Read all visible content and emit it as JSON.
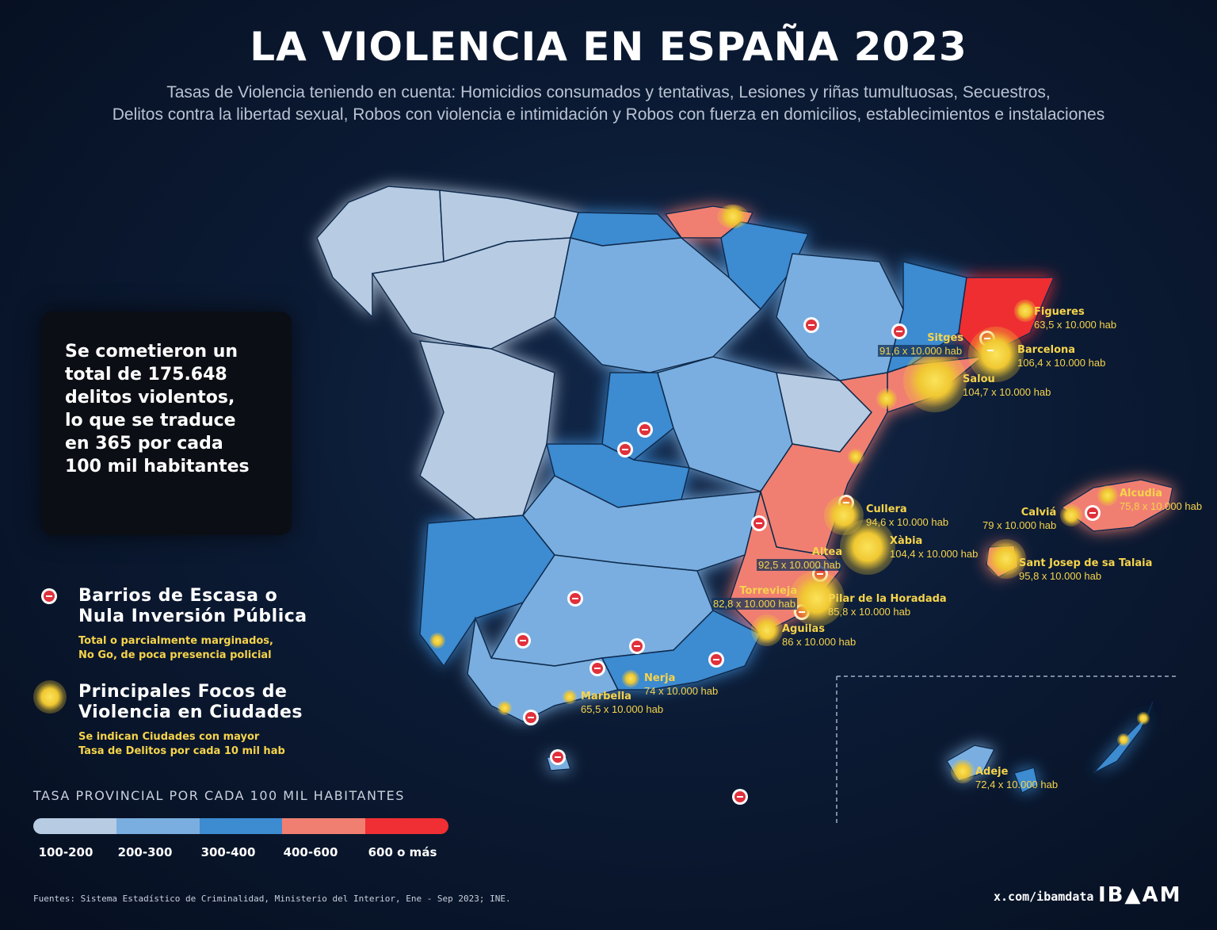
{
  "header": {
    "title": "LA VIOLENCIA EN ESPAÑA 2023",
    "subtitle_line1": "Tasas de Violencia teniendo en cuenta: Homicidios consumados y tentativas, Lesiones y riñas tumultuosas, Secuestros,",
    "subtitle_line2": "Delitos contra la libertad sexual, Robos con violencia e intimidación y Robos con fuerza en domicilios, establecimientos e instalaciones"
  },
  "callout": {
    "lines": [
      "Se cometieron un",
      "total de 175.648",
      "delitos violentos,",
      "lo que se traduce",
      "en 365 por cada",
      "100 mil habitantes"
    ]
  },
  "legend": {
    "neighborhoods_title_1": "Barrios de Escasa o",
    "neighborhoods_title_2": "Nula Inversión Pública",
    "neighborhoods_desc_1": "Total o parcialmente marginados,",
    "neighborhoods_desc_2": "No Go, de poca presencia policial",
    "hotspots_title_1": "Principales Focos de",
    "hotspots_title_2": "Violencia en Ciudades",
    "hotspots_desc_1": "Se indican Ciudades con mayor",
    "hotspots_desc_2": "Tasa de Delitos por cada 10 mil hab"
  },
  "scale": {
    "title": "TASA PROVINCIAL POR CADA 100 MIL HABITANTES",
    "bins": [
      {
        "label": "100-200",
        "color": "#b7cbe3"
      },
      {
        "label": "200-300",
        "color": "#7aaee0"
      },
      {
        "label": "300-400",
        "color": "#3d8bd1"
      },
      {
        "label": "400-600",
        "color": "#f07f72"
      },
      {
        "label": "600 o más",
        "color": "#ef2f33"
      }
    ]
  },
  "cities": [
    {
      "name": "Figueres",
      "rate": "63,5 x 10.000 hab"
    },
    {
      "name": "Sitges",
      "rate": "91,6 x 10.000 hab"
    },
    {
      "name": "Barcelona",
      "rate": "106,4 x 10.000 hab"
    },
    {
      "name": "Salou",
      "rate": "104,7 x 10.000 hab"
    },
    {
      "name": "Alcudia",
      "rate": "75,8 x 10.000 hab"
    },
    {
      "name": "Calviá",
      "rate": "79 x 10.000 hab"
    },
    {
      "name": "Cullera",
      "rate": "94,6 x 10.000 hab"
    },
    {
      "name": "Xàbia",
      "rate": "104,4 x 10.000 hab"
    },
    {
      "name": "Altea",
      "rate": "92,5 x 10.000 hab"
    },
    {
      "name": "Sant Josep de sa Talaia",
      "rate": "95,8 x 10.000 hab"
    },
    {
      "name": "Torrevieja",
      "rate": "82,8 x 10.000 hab"
    },
    {
      "name": "Pilar de la Horadada",
      "rate": "85,8 x 10.000 hab"
    },
    {
      "name": "Aguilas",
      "rate": "86 x 10.000 hab"
    },
    {
      "name": "Nerja",
      "rate": "74 x 10.000 hab"
    },
    {
      "name": "Marbella",
      "rate": "65,5 x 10.000 hab"
    },
    {
      "name": "Adeje",
      "rate": "72,4 x 10.000 hab"
    }
  ],
  "footer": {
    "sources": "Fuentes: Sistema Estadístico de Criminalidad, Ministerio del Interior, Ene - Sep 2023; INE.",
    "handle": "x.com/ibamdata",
    "logo": "IB▲AM"
  }
}
